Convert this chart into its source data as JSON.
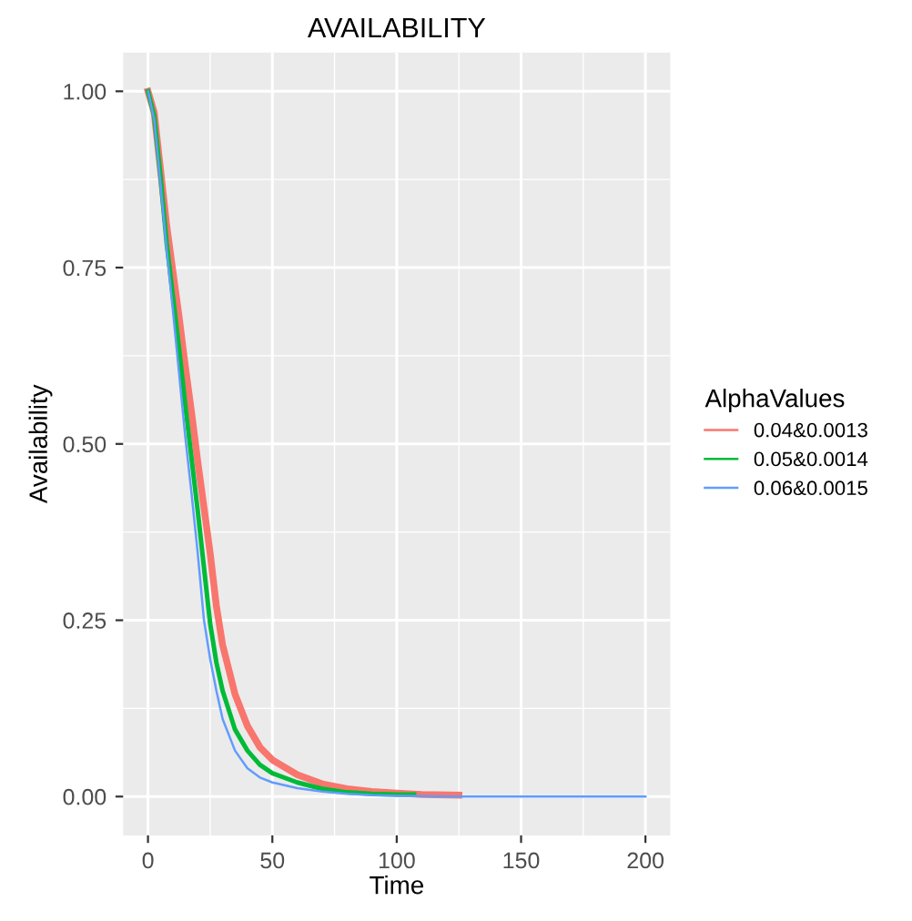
{
  "chart_data": {
    "type": "line",
    "title": "AVAILABILITY",
    "xlabel": "Time",
    "ylabel": "Availability",
    "legend_title": "AlphaValues",
    "xlim": [
      -10,
      210
    ],
    "ylim": [
      -0.055,
      1.055
    ],
    "xticks": [
      0,
      {
        "value": 25,
        "label": null
      },
      50,
      {
        "value": 75,
        "label": null
      },
      100,
      {
        "value": 125,
        "label": null
      },
      150,
      {
        "value": 175,
        "label": null
      },
      200
    ],
    "yticks": [
      {
        "value": 0,
        "label": "0.00"
      },
      {
        "value": 0.125,
        "label": null
      },
      {
        "value": 0.25,
        "label": "0.25"
      },
      {
        "value": 0.375,
        "label": null
      },
      {
        "value": 0.5,
        "label": "0.50"
      },
      {
        "value": 0.625,
        "label": null
      },
      {
        "value": 0.75,
        "label": "0.75"
      },
      {
        "value": 0.875,
        "label": null
      },
      {
        "value": 1,
        "label": "1.00"
      }
    ],
    "grid": true,
    "legend": "right",
    "series": [
      {
        "name": "0.04&0.0013",
        "color": "#f8766d",
        "x": [
          0,
          2.5,
          5,
          7.5,
          10,
          12.5,
          15,
          17.5,
          20,
          22.5,
          25,
          27.5,
          30,
          35,
          40,
          45,
          50,
          60,
          70,
          80,
          90,
          100,
          110,
          125
        ],
        "values": [
          1,
          0.97,
          0.89,
          0.81,
          0.745,
          0.68,
          0.61,
          0.545,
          0.475,
          0.41,
          0.345,
          0.27,
          0.215,
          0.145,
          0.1,
          0.07,
          0.052,
          0.031,
          0.018,
          0.011,
          0.007,
          0.005,
          0.003,
          0.002
        ]
      },
      {
        "name": "0.05&0.0014",
        "color": "#00ba38",
        "x": [
          0,
          2.5,
          5,
          7.5,
          10,
          12.5,
          15,
          17.5,
          20,
          22.5,
          25,
          27.5,
          30,
          35,
          40,
          45,
          50,
          60,
          70,
          80,
          90,
          100,
          107
        ],
        "values": [
          1,
          0.965,
          0.88,
          0.785,
          0.71,
          0.635,
          0.555,
          0.48,
          0.405,
          0.325,
          0.245,
          0.19,
          0.15,
          0.095,
          0.065,
          0.045,
          0.033,
          0.02,
          0.011,
          0.006,
          0.004,
          0.003,
          0.003
        ]
      },
      {
        "name": "0.06&0.0015",
        "color": "#619cff",
        "x": [
          0,
          2.5,
          5,
          7.5,
          10,
          12.5,
          15,
          17.5,
          20,
          22.5,
          25,
          27.5,
          30,
          35,
          40,
          45,
          50,
          60,
          70,
          80,
          90,
          100,
          125,
          150,
          200
        ],
        "values": [
          1,
          0.96,
          0.87,
          0.775,
          0.69,
          0.6,
          0.51,
          0.43,
          0.345,
          0.25,
          0.195,
          0.15,
          0.11,
          0.065,
          0.04,
          0.027,
          0.02,
          0.012,
          0.007,
          0.004,
          0.002,
          0.001,
          0,
          0,
          0
        ]
      }
    ]
  }
}
